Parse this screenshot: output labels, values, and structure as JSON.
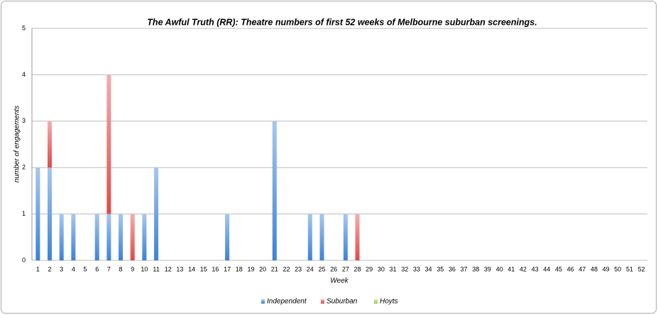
{
  "chart_data": {
    "type": "bar",
    "stacked": true,
    "title": "The Awful Truth (RR): Theatre numbers of first 52 weeks of Melbourne suburban screenings.",
    "x_label": "Week",
    "y_label": "number of engagements",
    "categories": [
      1,
      2,
      3,
      4,
      5,
      6,
      7,
      8,
      9,
      10,
      11,
      12,
      13,
      14,
      15,
      16,
      17,
      18,
      19,
      20,
      21,
      22,
      23,
      24,
      25,
      26,
      27,
      28,
      29,
      30,
      31,
      32,
      33,
      34,
      35,
      36,
      37,
      38,
      39,
      40,
      41,
      42,
      43,
      44,
      45,
      46,
      47,
      48,
      49,
      50,
      51,
      52
    ],
    "series": [
      {
        "name": "Independent",
        "color": "#3b82d8",
        "values": [
          2,
          2,
          1,
          1,
          0,
          1,
          1,
          1,
          0,
          1,
          2,
          0,
          0,
          0,
          0,
          0,
          1,
          0,
          0,
          0,
          3,
          0,
          0,
          1,
          1,
          0,
          1,
          0,
          0,
          0,
          0,
          0,
          0,
          0,
          0,
          0,
          0,
          0,
          0,
          0,
          0,
          0,
          0,
          0,
          0,
          0,
          0,
          0,
          0,
          0,
          0,
          0
        ]
      },
      {
        "name": "Suburban",
        "color": "#e04a4a",
        "values": [
          0,
          1,
          0,
          0,
          0,
          0,
          3,
          0,
          1,
          0,
          0,
          0,
          0,
          0,
          0,
          0,
          0,
          0,
          0,
          0,
          0,
          0,
          0,
          0,
          0,
          0,
          0,
          1,
          0,
          0,
          0,
          0,
          0,
          0,
          0,
          0,
          0,
          0,
          0,
          0,
          0,
          0,
          0,
          0,
          0,
          0,
          0,
          0,
          0,
          0,
          0,
          0
        ]
      },
      {
        "name": "Hoyts",
        "color": "#8fd14f",
        "values": [
          0,
          0,
          0,
          0,
          0,
          0,
          0,
          0,
          0,
          0,
          0,
          0,
          0,
          0,
          0,
          0,
          0,
          0,
          0,
          0,
          0,
          0,
          0,
          0,
          0,
          0,
          0,
          0,
          0,
          0,
          0,
          0,
          0,
          0,
          0,
          0,
          0,
          0,
          0,
          0,
          0,
          0,
          0,
          0,
          0,
          0,
          0,
          0,
          0,
          0,
          0,
          0
        ]
      }
    ],
    "ylim": [
      0,
      5
    ],
    "yticks": [
      0,
      1,
      2,
      3,
      4,
      5
    ],
    "grid": true,
    "legend": "bottom"
  }
}
